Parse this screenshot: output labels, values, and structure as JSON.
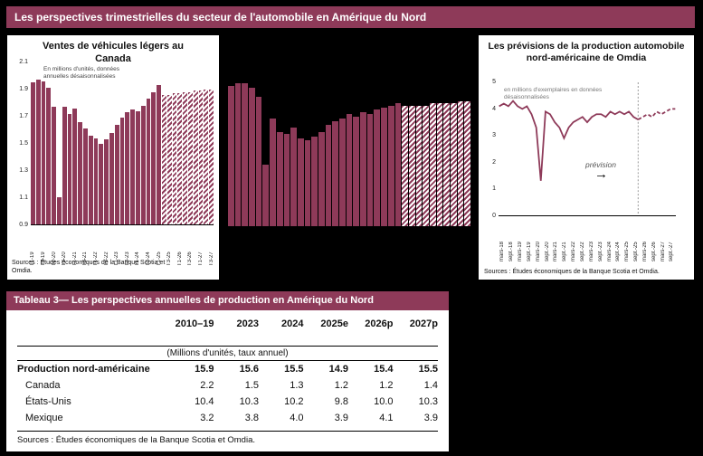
{
  "page": {
    "header": "Les perspectives trimestrielles du secteur de l'automobile en Amérique du Nord"
  },
  "colors": {
    "accent": "#8E3A59",
    "background": "#000000",
    "panel": "#FFFFFF"
  },
  "icons": {
    "forecast_arrow": "→"
  },
  "chart_data": [
    {
      "type": "bar",
      "title": "Ventes de véhicules légers au Canada",
      "note": "En millions d'unités, données annuelles désaisonnalisées",
      "sources": "Sources : Études économiques de la Banque Scotia et Omdia.",
      "ylim": [
        0.9,
        2.1
      ],
      "yticks": [
        "2.1",
        "1.9",
        "1.7",
        "1.5",
        "1.3",
        "1.1",
        "0.9"
      ],
      "xtick_every": 2,
      "categories": [
        "T1-19",
        "T2-19",
        "T3-19",
        "T4-19",
        "T1-20",
        "T2-20",
        "T3-20",
        "T4-20",
        "T1-21",
        "T2-21",
        "T3-21",
        "T4-21",
        "T1-22",
        "T2-22",
        "T3-22",
        "T4-22",
        "T1-23",
        "T2-23",
        "T3-23",
        "T4-23",
        "T1-24",
        "T2-24",
        "T3-24",
        "T4-24",
        "T1-25",
        "T2-25",
        "T3-25",
        "T4-25",
        "T1-26",
        "T2-26",
        "T3-26",
        "T4-26",
        "T1-27",
        "T2-27",
        "T3-27"
      ],
      "values": [
        1.95,
        1.97,
        1.96,
        1.91,
        1.77,
        1.1,
        1.77,
        1.72,
        1.76,
        1.66,
        1.61,
        1.56,
        1.54,
        1.5,
        1.53,
        1.58,
        1.64,
        1.69,
        1.73,
        1.75,
        1.74,
        1.78,
        1.83,
        1.88,
        1.93,
        1.86,
        1.86,
        1.87,
        1.87,
        1.88,
        1.88,
        1.89,
        1.89,
        1.9,
        1.9
      ],
      "forecast_start_index": 25,
      "values_note": "valeurs estimées à partir des pixels"
    },
    {
      "type": "bar",
      "title": "",
      "note": "",
      "sources": "",
      "ylim": [
        11,
        17.8
      ],
      "yticks": [],
      "categories": [],
      "values": [
        17.4,
        17.5,
        17.5,
        17.3,
        16.9,
        13.8,
        15.9,
        15.3,
        15.2,
        15.5,
        15.0,
        14.9,
        15.1,
        15.3,
        15.6,
        15.8,
        15.9,
        16.1,
        16.0,
        16.2,
        16.1,
        16.3,
        16.4,
        16.5,
        16.6,
        16.5,
        16.5,
        16.5,
        16.5,
        16.6,
        16.6,
        16.6,
        16.6,
        16.7,
        16.7
      ],
      "forecast_start_index": 25,
      "values_note": "graphique sans axes visibles; hauteurs relatives estimées"
    },
    {
      "type": "line",
      "title": "Les prévisions de la production automobile nord-américaine de Omdia",
      "note": "en millions d'exemplaires en données désaisonnalisées",
      "annotation": "prévision",
      "sources": "Sources : Études économiques de la Banque Scotia et Omdia.",
      "ylim": [
        0,
        5
      ],
      "yticks": [
        "5",
        "4",
        "3",
        "2",
        "1",
        "0"
      ],
      "x_ticks": [
        "mars-18",
        "sept.-18",
        "mars-19",
        "sept.-19",
        "mars-20",
        "sept.-20",
        "mars-21",
        "sept.-21",
        "mars-22",
        "sept.-22",
        "mars-23",
        "sept.-23",
        "mars-24",
        "sept.-24",
        "mars-25",
        "sept.-25",
        "mars-26",
        "sept.-26",
        "mars-27",
        "sept.-27"
      ],
      "values": [
        4.1,
        4.2,
        4.1,
        4.3,
        4.1,
        4.0,
        4.1,
        3.8,
        3.3,
        1.3,
        3.9,
        3.8,
        3.5,
        3.3,
        2.9,
        3.3,
        3.5,
        3.6,
        3.7,
        3.5,
        3.7,
        3.8,
        3.8,
        3.7,
        3.9,
        3.8,
        3.9,
        3.8,
        3.9,
        3.7,
        3.6,
        3.7,
        3.8,
        3.7,
        3.9,
        3.8,
        3.9,
        4.0,
        4.0
      ],
      "forecast_start_index": 30,
      "values_note": "valeurs trimestrielles estimées à partir de la courbe"
    }
  ],
  "table": {
    "banner": "Tableau 3— Les perspectives annuelles de production en Amérique du Nord",
    "unit_note": "(Millions d'unités, taux annuel)",
    "columns": [
      "2010–19",
      "2023",
      "2024",
      "2025e",
      "2026p",
      "2027p"
    ],
    "rows": [
      {
        "label": "Production nord-américaine",
        "bold": true,
        "values": [
          "15.9",
          "15.6",
          "15.5",
          "14.9",
          "15.4",
          "15.5"
        ]
      },
      {
        "label": "Canada",
        "bold": false,
        "values": [
          "2.2",
          "1.5",
          "1.3",
          "1.2",
          "1.2",
          "1.4"
        ]
      },
      {
        "label": "États-Unis",
        "bold": false,
        "values": [
          "10.4",
          "10.3",
          "10.2",
          "9.8",
          "10.0",
          "10.3"
        ]
      },
      {
        "label": "Mexique",
        "bold": false,
        "values": [
          "3.2",
          "3.8",
          "4.0",
          "3.9",
          "4.1",
          "3.9"
        ]
      }
    ],
    "sources": "Sources : Études économiques de la Banque Scotia et Omdia."
  }
}
